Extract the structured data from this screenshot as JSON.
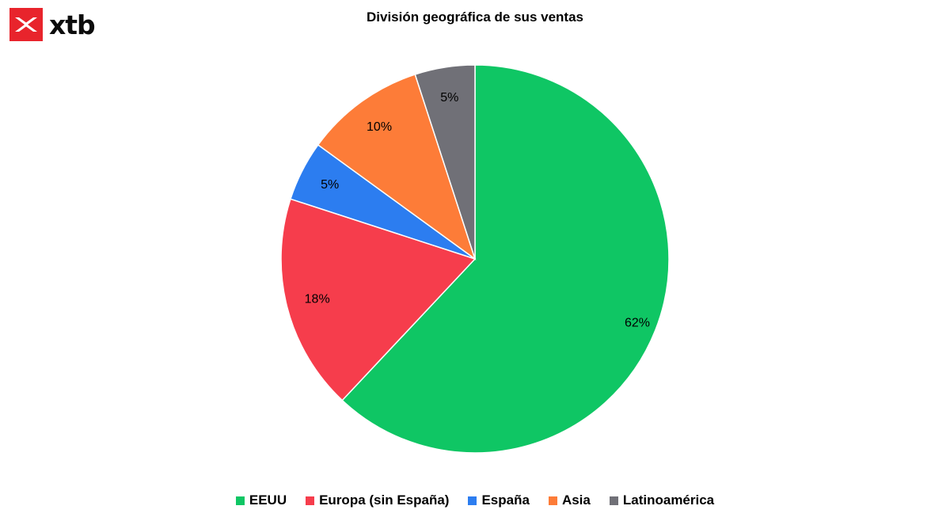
{
  "brand": {
    "logo_icon": "xtb-x-logo-icon",
    "name": "xtb",
    "color": "#e8242c"
  },
  "chart_data": {
    "type": "pie",
    "title": "División geográfica de sus ventas",
    "legend_position": "bottom",
    "slices": [
      {
        "name": "EEUU",
        "value": 62,
        "label": "62%",
        "color": "#0fc664"
      },
      {
        "name": "Europa (sin España)",
        "value": 18,
        "label": "18%",
        "color": "#f63d4c"
      },
      {
        "name": "España",
        "value": 5,
        "label": "5%",
        "color": "#2c7df0"
      },
      {
        "name": "Asia",
        "value": 10,
        "label": "10%",
        "color": "#fd7c38"
      },
      {
        "name": "Latinoamérica",
        "value": 5,
        "label": "5%",
        "color": "#707077"
      }
    ]
  }
}
